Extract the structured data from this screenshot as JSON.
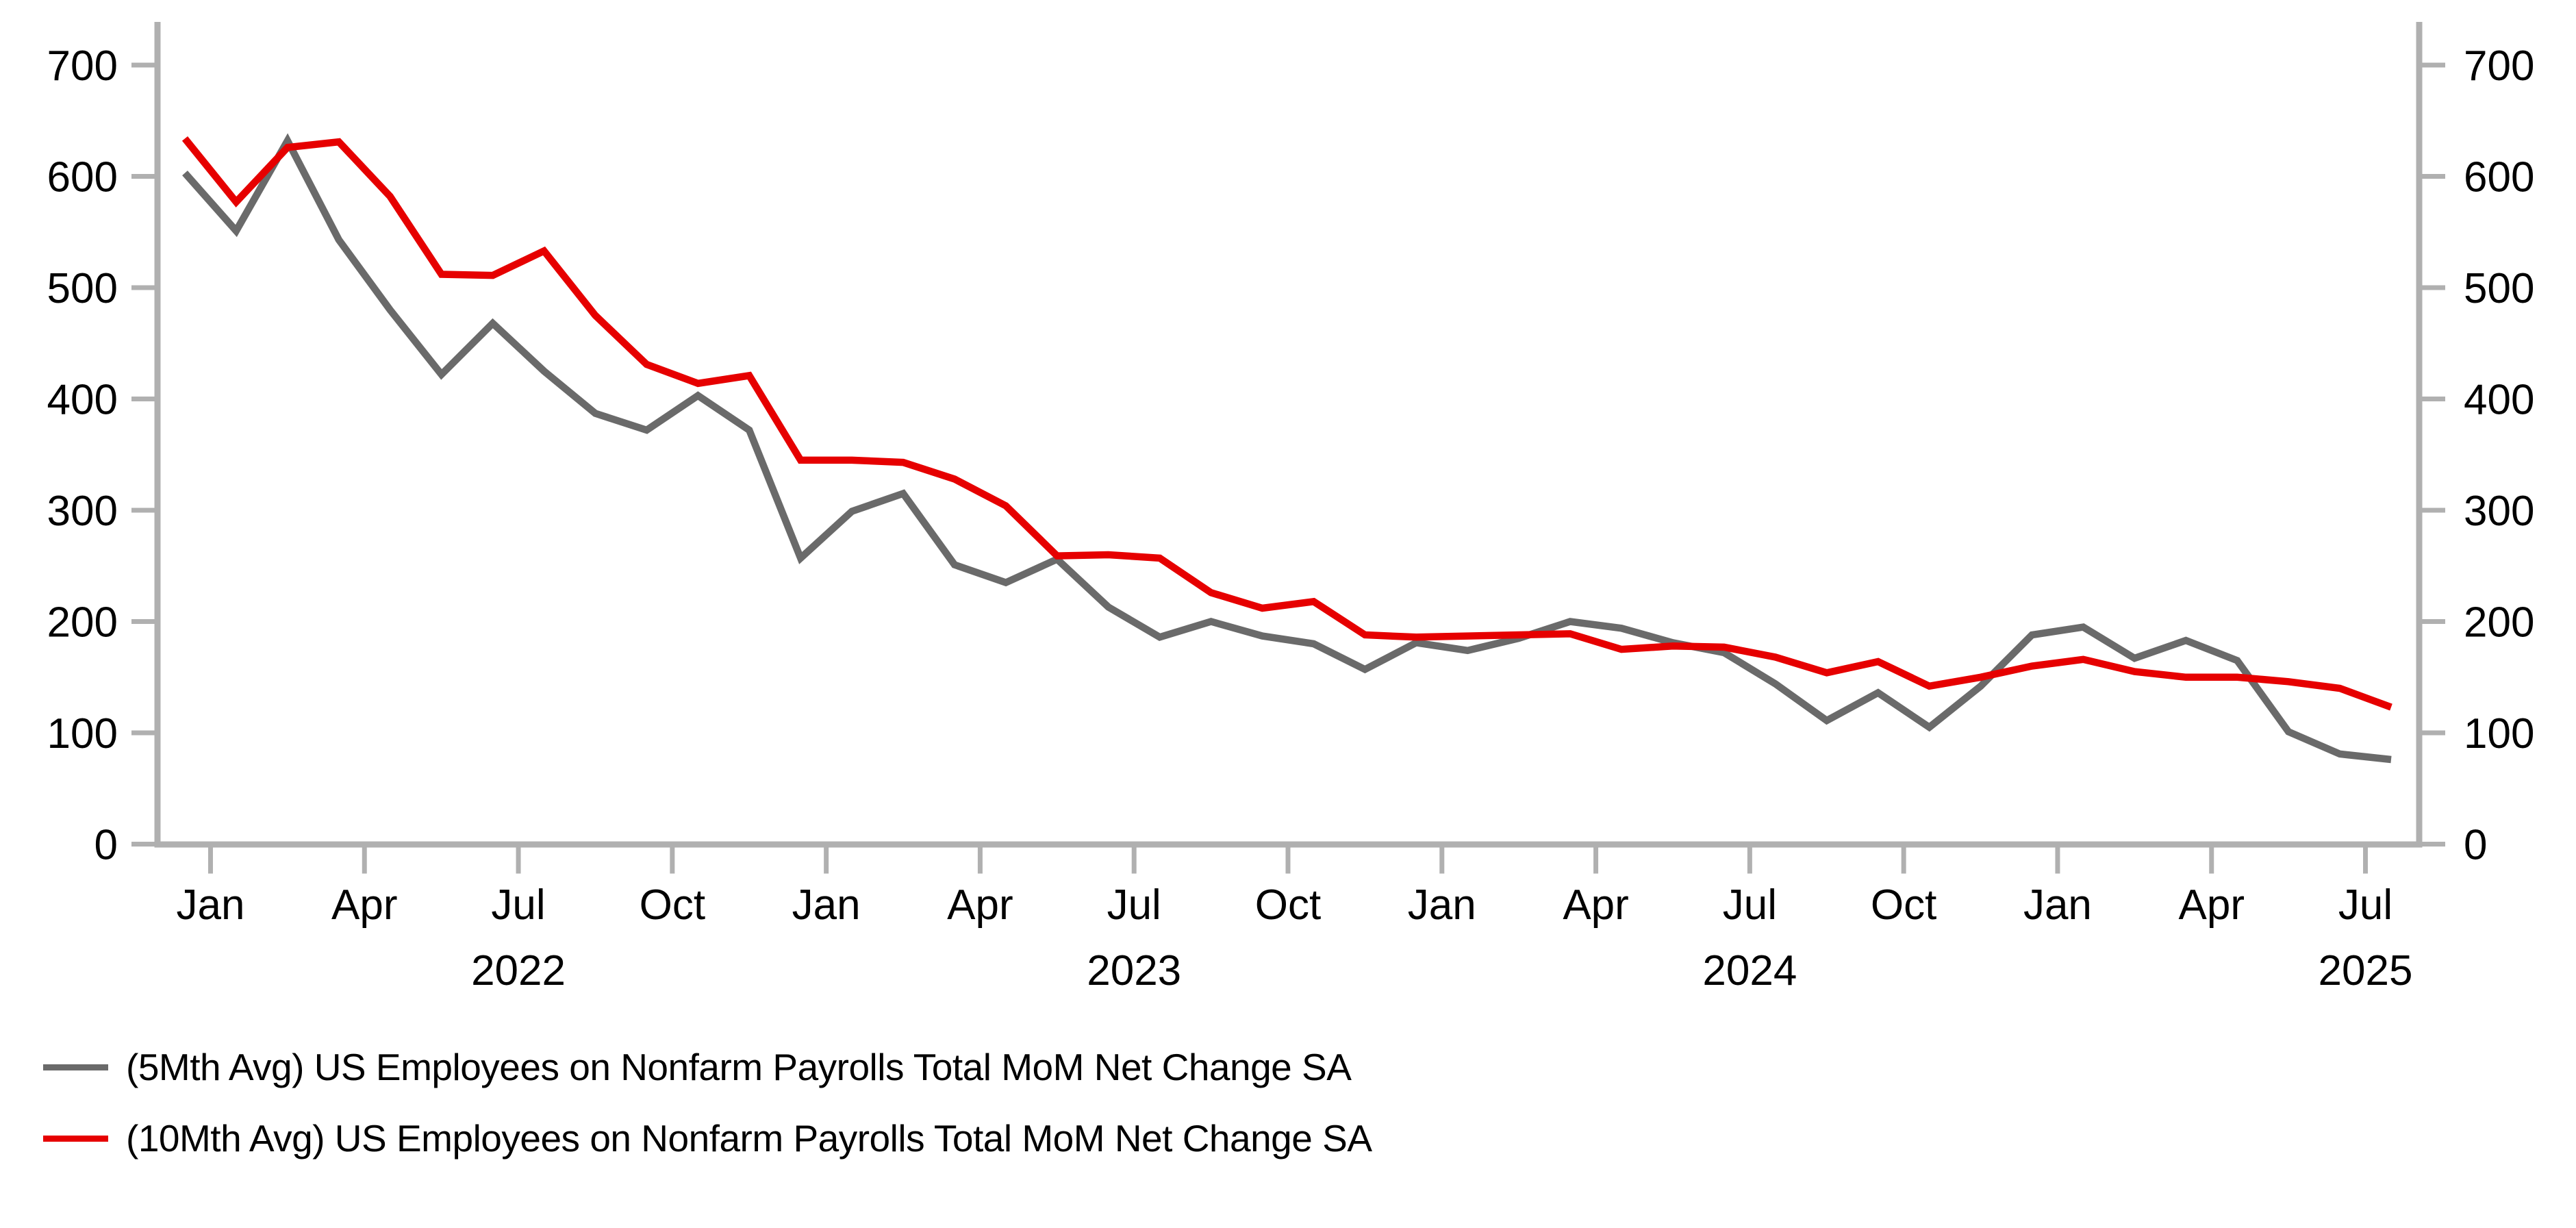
{
  "chart_data": {
    "type": "line",
    "title": "",
    "xlabel": "",
    "ylabel": "",
    "grid": false,
    "dual_y_axis": true,
    "legend_position": "bottom-left",
    "ylim": [
      0,
      700
    ],
    "y_ticks": [
      0,
      100,
      200,
      300,
      400,
      500,
      600,
      700
    ],
    "y_tick_labels": [
      "0",
      "100",
      "200",
      "300",
      "400",
      "500",
      "600",
      "700"
    ],
    "x": [
      "Dec 2021",
      "Jan 2022",
      "Feb 2022",
      "Mar 2022",
      "Apr 2022",
      "May 2022",
      "Jun 2022",
      "Jul 2022",
      "Aug 2022",
      "Sep 2022",
      "Oct 2022",
      "Nov 2022",
      "Dec 2022",
      "Jan 2023",
      "Feb 2023",
      "Mar 2023",
      "Apr 2023",
      "May 2023",
      "Jun 2023",
      "Jul 2023",
      "Aug 2023",
      "Sep 2023",
      "Oct 2023",
      "Nov 2023",
      "Dec 2023",
      "Jan 2024",
      "Feb 2024",
      "Mar 2024",
      "Apr 2024",
      "May 2024",
      "Jun 2024",
      "Jul 2024",
      "Aug 2024",
      "Sep 2024",
      "Oct 2024",
      "Nov 2024",
      "Dec 2024",
      "Jan 2025",
      "Feb 2025",
      "Mar 2025",
      "Apr 2025",
      "May 2025",
      "Jun 2025",
      "Jul 2025"
    ],
    "x_ticks": [
      {
        "label": "Jan",
        "index": 1
      },
      {
        "label": "Apr",
        "index": 4
      },
      {
        "label": "Jul",
        "index": 7
      },
      {
        "label": "Oct",
        "index": 10
      },
      {
        "label": "Jan",
        "index": 13
      },
      {
        "label": "Apr",
        "index": 16
      },
      {
        "label": "Jul",
        "index": 19
      },
      {
        "label": "Oct",
        "index": 22
      },
      {
        "label": "Jan",
        "index": 25
      },
      {
        "label": "Apr",
        "index": 28
      },
      {
        "label": "Jul",
        "index": 31
      },
      {
        "label": "Oct",
        "index": 34
      },
      {
        "label": "Jan",
        "index": 37
      },
      {
        "label": "Apr",
        "index": 40
      },
      {
        "label": "Jul",
        "index": 43
      }
    ],
    "year_labels": [
      {
        "label": "2022",
        "index": 7
      },
      {
        "label": "2023",
        "index": 19
      },
      {
        "label": "2024",
        "index": 31
      },
      {
        "label": "2025",
        "index": 43
      }
    ],
    "series": [
      {
        "name": "(5Mth Avg) US Employees on Nonfarm Payrolls Total MoM Net Change SA",
        "color": "#6a6a6a",
        "values": [
          603,
          551,
          632,
          543,
          480,
          422,
          468,
          425,
          387,
          372,
          403,
          372,
          257,
          299,
          315,
          251,
          235,
          256,
          213,
          186,
          200,
          187,
          180,
          157,
          181,
          174,
          185,
          200,
          194,
          181,
          172,
          144,
          111,
          136,
          105,
          142,
          188,
          195,
          167,
          183,
          165,
          101,
          81,
          76
        ]
      },
      {
        "name": "(10Mth Avg) US Employees on Nonfarm Payrolls Total MoM Net Change SA",
        "color": "#e60000",
        "values": [
          634,
          577,
          626,
          631,
          582,
          512,
          511,
          533,
          475,
          431,
          414,
          421,
          345,
          345,
          343,
          328,
          304,
          259,
          260,
          257,
          226,
          212,
          218,
          188,
          186,
          187,
          188,
          189,
          175,
          178,
          177,
          168,
          154,
          164,
          142,
          150,
          160,
          166,
          155,
          150,
          150,
          146,
          140,
          123
        ]
      }
    ],
    "axis_color": "#b0b0b0"
  },
  "legend": {
    "items": [
      {
        "label": "(5Mth Avg) US Employees on Nonfarm Payrolls Total MoM Net Change SA"
      },
      {
        "label": "(10Mth Avg) US Employees on Nonfarm Payrolls Total MoM Net Change SA"
      }
    ]
  }
}
